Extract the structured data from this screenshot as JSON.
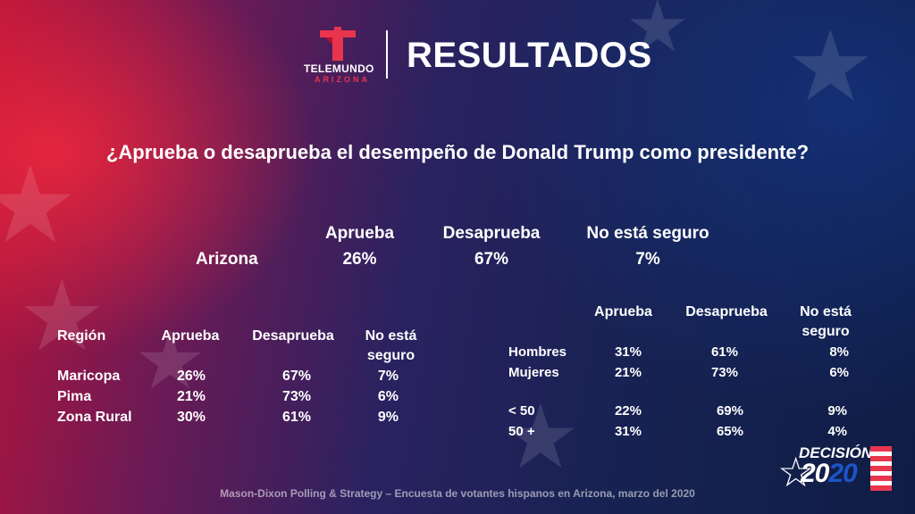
{
  "header": {
    "logo_word": "TELEMUNDO",
    "logo_sub": "ARIZONA",
    "title": "RESULTADOS"
  },
  "question": "¿Aprueba o desaprueba el desempeño de Donald Trump como presidente?",
  "statewide": {
    "label": "Arizona",
    "columns": [
      "Aprueba",
      "Desaprueba",
      "No está seguro"
    ],
    "values": [
      "26%",
      "67%",
      "7%"
    ]
  },
  "region_table": {
    "header": [
      "Región",
      "Aprueba",
      "Desaprueba",
      "No está",
      "seguro"
    ],
    "rows": [
      {
        "name": "Maricopa",
        "values": [
          "26%",
          "67%",
          "7%"
        ]
      },
      {
        "name": "Pima",
        "values": [
          "21%",
          "73%",
          "6%"
        ]
      },
      {
        "name": "Zona Rural",
        "values": [
          "30%",
          "61%",
          "9%"
        ]
      }
    ]
  },
  "demo_table": {
    "header": [
      "Aprueba",
      "Desaprueba",
      "No está",
      "seguro"
    ],
    "rows": [
      {
        "name": "Hombres",
        "values": [
          "31%",
          "61%",
          "8%"
        ]
      },
      {
        "name": "Mujeres",
        "values": [
          "21%",
          "73%",
          "6%"
        ]
      },
      {
        "name": "< 50",
        "values": [
          "22%",
          "69%",
          "9%"
        ]
      },
      {
        "name": "50 +",
        "values": [
          "31%",
          "65%",
          "4%"
        ]
      }
    ]
  },
  "footer": "Mason-Dixon  Polling & Strategy – Encuesta de votantes hispanos en Arizona, marzo del 2020",
  "badge": {
    "word": "DECISIÓN",
    "year_a": "20",
    "year_b": "20"
  },
  "colors": {
    "brand_red": "#e8354d",
    "badge_blue": "#1a55c8"
  }
}
